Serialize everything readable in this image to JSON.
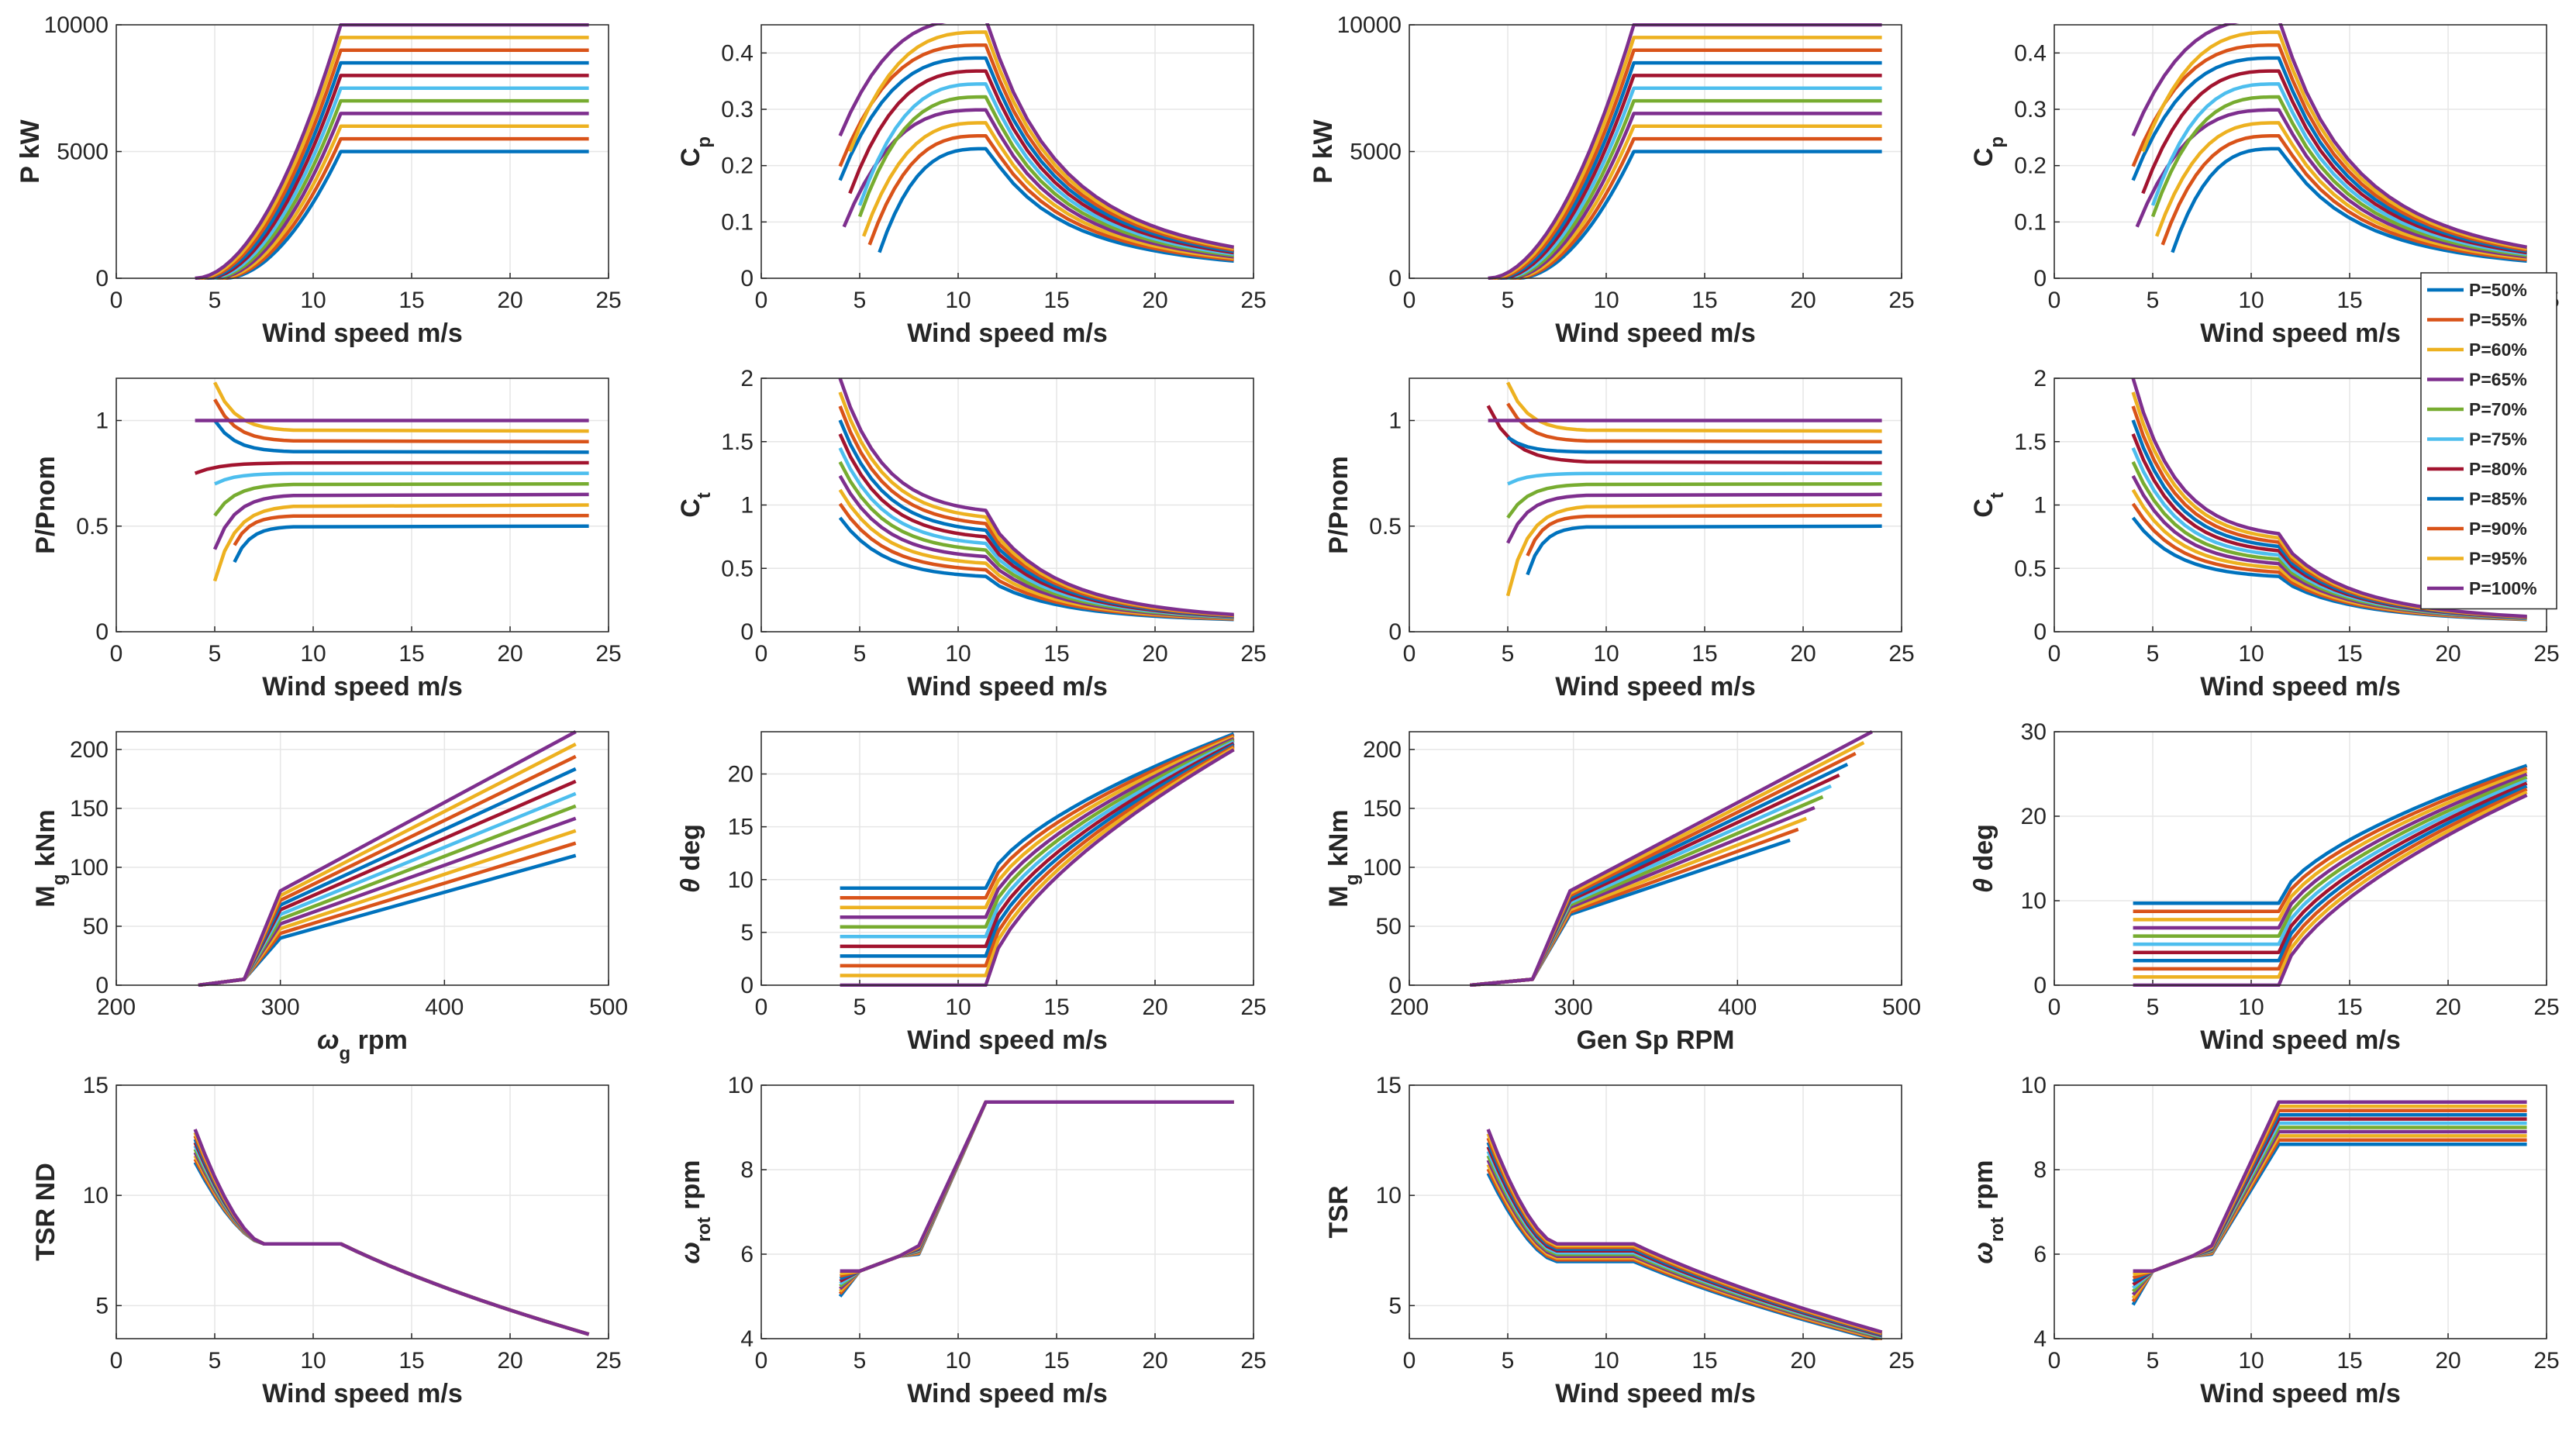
{
  "colors": [
    "#0072BD",
    "#D95319",
    "#EDB120",
    "#7E2F8E",
    "#77AC30",
    "#4DBEEE",
    "#A2142F",
    "#0072BD",
    "#D95319",
    "#EDB120",
    "#7E2F8E"
  ],
  "legend": {
    "entries": [
      "P=50%",
      "P=55%",
      "P=60%",
      "P=65%",
      "P=70%",
      "P=75%",
      "P=80%",
      "P=85%",
      "P=90%",
      "P=95%",
      "P=100%"
    ],
    "placement": "right edge of top-right figure block"
  },
  "chart_data": [
    {
      "id": "p11",
      "type": "line",
      "xlabel": "Wind speed m/s",
      "ylabel": "P kW",
      "xlim": [
        0,
        25
      ],
      "ylim": [
        0,
        10000
      ],
      "xticks": [
        "0",
        "5",
        "10",
        "15",
        "20",
        "25"
      ],
      "yticks": [
        "0",
        "5000",
        "10000"
      ],
      "gen": "power",
      "params": {
        "vstart": 4,
        "vstartStep": 0.15,
        "vrated": 11.4,
        "pmax": 10000
      }
    },
    {
      "id": "p12",
      "type": "line",
      "xlabel": "Wind speed m/s",
      "ylabel": "C_p",
      "xlim": [
        0,
        25
      ],
      "ylim": [
        0,
        0.45
      ],
      "xticks": [
        "0",
        "5",
        "10",
        "15",
        "20",
        "25"
      ],
      "yticks": [
        "0",
        "0.1",
        "0.2",
        "0.3",
        "0.4"
      ],
      "gen": "cp",
      "params": {
        "peakMin": 0.23,
        "peakMax": 0.46,
        "start": [
          6,
          5.5,
          5.2,
          4.2,
          5,
          5,
          4.5,
          4,
          4,
          4.5,
          4
        ],
        "end": 0.02
      }
    },
    {
      "id": "p13",
      "type": "line",
      "xlabel": "Wind speed m/s",
      "ylabel": "P kW",
      "xlim": [
        0,
        25
      ],
      "ylim": [
        0,
        10000
      ],
      "xticks": [
        "0",
        "5",
        "10",
        "15",
        "20",
        "25"
      ],
      "yticks": [
        "0",
        "5000",
        "10000"
      ],
      "gen": "power",
      "params": {
        "vstart": 4,
        "vstartStep": 0.15,
        "vrated": 11.4,
        "pmax": 10000
      }
    },
    {
      "id": "p14",
      "type": "line",
      "xlabel": "Wind speed m/s",
      "ylabel": "C_p",
      "xlim": [
        0,
        25
      ],
      "ylim": [
        0,
        0.45
      ],
      "xticks": [
        "0",
        "5",
        "10",
        "15",
        "20",
        "25"
      ],
      "yticks": [
        "0",
        "0.1",
        "0.2",
        "0.3",
        "0.4"
      ],
      "gen": "cp",
      "params": {
        "peakMin": 0.23,
        "peakMax": 0.46,
        "start": [
          6,
          5.5,
          5.2,
          4.2,
          5,
          5,
          4.5,
          4,
          4,
          4.5,
          4
        ],
        "end": 0.02
      }
    },
    {
      "id": "p21",
      "type": "line",
      "xlabel": "Wind speed m/s",
      "ylabel": "P/Pnom",
      "xlim": [
        0,
        25
      ],
      "ylim": [
        0,
        1.2
      ],
      "xticks": [
        "0",
        "5",
        "10",
        "15",
        "20",
        "25"
      ],
      "yticks": [
        "0",
        "0.5",
        "1"
      ],
      "gen": "ppnom",
      "params": {
        "start": [
          0.33,
          0.41,
          0.24,
          0.39,
          0.55,
          0.7,
          0.75,
          1.0,
          1.1,
          1.18,
          1.0
        ],
        "startX": [
          6,
          6,
          5,
          5,
          5,
          5,
          4,
          5,
          5,
          5,
          4
        ]
      }
    },
    {
      "id": "p22",
      "type": "line",
      "xlabel": "Wind speed m/s",
      "ylabel": "C_t",
      "xlim": [
        0,
        25
      ],
      "ylim": [
        0,
        2
      ],
      "xticks": [
        "0",
        "5",
        "10",
        "15",
        "20",
        "25"
      ],
      "yticks": [
        "0",
        "0.5",
        "1",
        "1.5",
        "2"
      ],
      "gen": "ct",
      "params": {
        "startMin": 0.9,
        "startMax": 2.0,
        "ratedMin": 0.42,
        "ratedMax": 0.92,
        "end": 0.07
      }
    },
    {
      "id": "p23",
      "type": "line",
      "xlabel": "Wind speed m/s",
      "ylabel": "P/Pnom",
      "xlim": [
        0,
        25
      ],
      "ylim": [
        0,
        1.2
      ],
      "xticks": [
        "0",
        "5",
        "10",
        "15",
        "20",
        "25"
      ],
      "yticks": [
        "0",
        "0.5",
        "1"
      ],
      "gen": "ppnom",
      "params": {
        "start": [
          0.27,
          0.36,
          0.17,
          0.42,
          0.54,
          0.7,
          1.07,
          0.92,
          1.08,
          1.18,
          1.0
        ],
        "startX": [
          6,
          6,
          5,
          5,
          5,
          5,
          4,
          5,
          5,
          5,
          4
        ]
      }
    },
    {
      "id": "p24",
      "type": "line",
      "xlabel": "Wind speed m/s",
      "ylabel": "C_t",
      "xlim": [
        0,
        25
      ],
      "ylim": [
        0,
        2
      ],
      "xticks": [
        "0",
        "5",
        "10",
        "15",
        "20",
        "25"
      ],
      "yticks": [
        "0",
        "0.5",
        "1",
        "1.5",
        "2"
      ],
      "gen": "ct",
      "params": {
        "startMin": 0.9,
        "startMax": 2.0,
        "ratedMin": 0.42,
        "ratedMax": 0.73,
        "end": 0.07
      }
    },
    {
      "id": "p31",
      "type": "line",
      "xlabel": "ω_g rpm",
      "ylabel": "M_g kNm",
      "xlim": [
        200,
        500
      ],
      "ylim": [
        0,
        215
      ],
      "xticks": [
        "200",
        "300",
        "400",
        "500"
      ],
      "yticks": [
        "0",
        "50",
        "100",
        "150",
        "200"
      ],
      "gen": "torque",
      "params": {
        "x0": 250,
        "x1": 278,
        "xk": 300,
        "xend": 480,
        "endMin": 110,
        "endMax": 215,
        "kneeMin": 40,
        "kneeMax": 80,
        "xendMin": 480,
        "xendMax": 480
      }
    },
    {
      "id": "p32",
      "type": "line",
      "xlabel": "Wind speed m/s",
      "ylabel": "θ deg",
      "xlim": [
        0,
        25
      ],
      "ylim": [
        0,
        24
      ],
      "xticks": [
        "0",
        "5",
        "10",
        "15",
        "20",
        "25"
      ],
      "yticks": [
        "0",
        "5",
        "10",
        "15",
        "20"
      ],
      "gen": "pitch",
      "params": {
        "flatMax": 9.2,
        "flatMin": 0,
        "vr": 11.4,
        "endMax": 23.8,
        "endMin": 22.3
      }
    },
    {
      "id": "p33",
      "type": "line",
      "xlabel": "Gen Sp RPM",
      "ylabel": "M_g kNm",
      "xlim": [
        200,
        500
      ],
      "ylim": [
        0,
        215
      ],
      "xticks": [
        "200",
        "300",
        "400",
        "500"
      ],
      "yticks": [
        "0",
        "50",
        "100",
        "150",
        "200"
      ],
      "gen": "torque",
      "params": {
        "x0": 237,
        "x1": 275,
        "xk": 298,
        "xend": 480,
        "endMin": 123,
        "endMax": 215,
        "kneeMin": 60,
        "kneeMax": 80,
        "xendMin": 432,
        "xendMax": 482
      }
    },
    {
      "id": "p34",
      "type": "line",
      "xlabel": "Wind speed m/s",
      "ylabel": "θ deg",
      "xlim": [
        0,
        25
      ],
      "ylim": [
        0,
        30
      ],
      "xticks": [
        "0",
        "5",
        "10",
        "15",
        "20",
        "25"
      ],
      "yticks": [
        "0",
        "10",
        "20",
        "30"
      ],
      "gen": "pitch",
      "params": {
        "flatMax": 9.7,
        "flatMin": 0,
        "vr": 11.4,
        "endMax": 26,
        "endMin": 22.5
      }
    },
    {
      "id": "p41",
      "type": "line",
      "xlabel": "Wind speed m/s",
      "ylabel": "TSR ND",
      "xlim": [
        0,
        25
      ],
      "ylim": [
        3.5,
        15
      ],
      "xticks": [
        "0",
        "5",
        "10",
        "15",
        "20",
        "25"
      ],
      "yticks": [
        "5",
        "10",
        "15"
      ],
      "gen": "tsr",
      "params": {
        "startMin": 11.5,
        "startMax": 13,
        "plateauMin": 7.8,
        "plateauMax": 7.8,
        "endMin": 3.7,
        "endMax": 3.7
      }
    },
    {
      "id": "p42",
      "type": "line",
      "xlabel": "Wind speed m/s",
      "ylabel": "ω_rot rpm",
      "xlim": [
        0,
        25
      ],
      "ylim": [
        4,
        10
      ],
      "xticks": [
        "0",
        "5",
        "10",
        "15",
        "20",
        "25"
      ],
      "yticks": [
        "4",
        "6",
        "8",
        "10"
      ],
      "gen": "rot",
      "params": {
        "startMin": 5.0,
        "startMax": 5.6,
        "ratedMin": 9.6,
        "ratedMax": 9.6
      }
    },
    {
      "id": "p43",
      "type": "line",
      "xlabel": "Wind speed m/s",
      "ylabel": "TSR",
      "xlim": [
        0,
        25
      ],
      "ylim": [
        3.5,
        15
      ],
      "xticks": [
        "0",
        "5",
        "10",
        "15",
        "20",
        "25"
      ],
      "yticks": [
        "5",
        "10",
        "15"
      ],
      "gen": "tsr",
      "params": {
        "startMin": 11,
        "startMax": 13,
        "plateauMin": 7.0,
        "plateauMax": 7.8,
        "endMin": 3.4,
        "endMax": 3.8
      }
    },
    {
      "id": "p44",
      "type": "line",
      "xlabel": "Wind speed m/s",
      "ylabel": "ω_rot rpm",
      "xlim": [
        0,
        25
      ],
      "ylim": [
        4,
        10
      ],
      "xticks": [
        "0",
        "5",
        "10",
        "15",
        "20",
        "25"
      ],
      "yticks": [
        "4",
        "6",
        "8",
        "10"
      ],
      "gen": "rot",
      "params": {
        "startMin": 4.8,
        "startMax": 5.6,
        "ratedMin": 8.6,
        "ratedMax": 9.6
      }
    }
  ]
}
